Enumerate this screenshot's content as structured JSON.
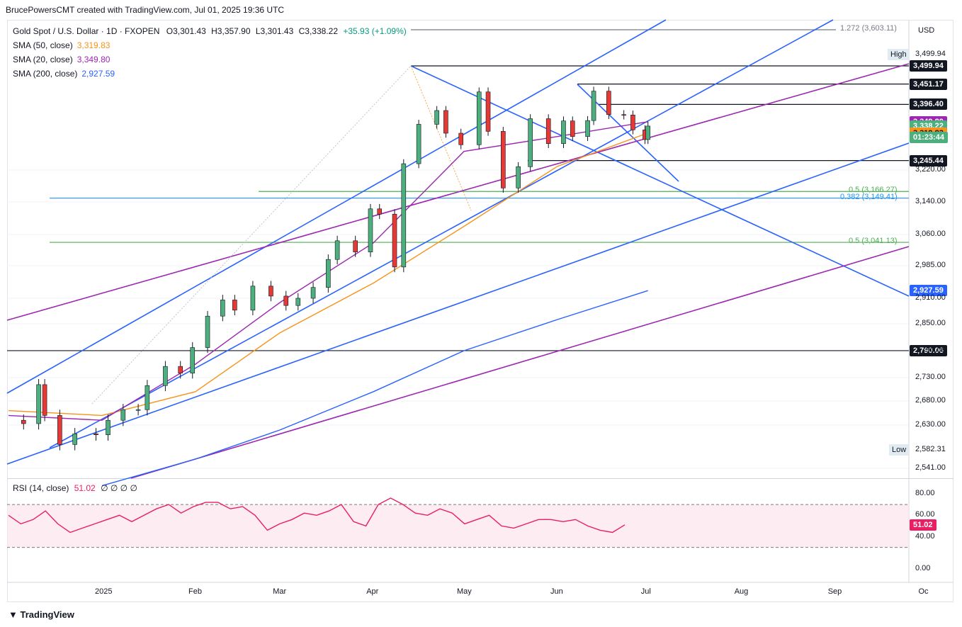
{
  "caption": "BrucePowersCMT created with TradingView.com, Jul 01, 2025 19:36 UTC",
  "symbol": "Gold Spot / U.S. Dollar · 1D · FXOPEN",
  "ohlc": {
    "o": "O3,301.43",
    "h": "H3,357.90",
    "l": "L3,301.43",
    "c": "C3,338.22",
    "chg": "+35.93 (+1.09%)"
  },
  "sma": [
    {
      "label": "SMA (50, close)",
      "value": "3,319.83",
      "color": "#f7931a"
    },
    {
      "label": "SMA (20, close)",
      "value": "3,349.80",
      "color": "#9c27b0"
    },
    {
      "label": "SMA (200, close)",
      "value": "2,927.59",
      "color": "#2962ff"
    }
  ],
  "currency": "USD",
  "high_label": "High",
  "high_value": "3,499.94",
  "low_label": "Low",
  "low_value": "2,582.31",
  "countdown": "01:23:44",
  "fib_labels": [
    {
      "text": "1.272 (3,603.11)",
      "price": 3603.11,
      "color": "#787b86"
    },
    {
      "text": "0.5 (3,166.27)",
      "price": 3166.27,
      "color": "#4caf50"
    },
    {
      "text": "0.382 (3,149.41)",
      "price": 3149.41,
      "color": "#2196f3"
    },
    {
      "text": "0.5 (3,041.13)",
      "price": 3041.13,
      "color": "#4caf50"
    }
  ],
  "price_boxes": [
    {
      "text": "3,499.94",
      "price": 3499.94,
      "bg": "#131722",
      "fg": "#ffffff"
    },
    {
      "text": "3,451.17",
      "price": 3451.17,
      "bg": "#131722",
      "fg": "#ffffff"
    },
    {
      "text": "3,396.40",
      "price": 3396.4,
      "bg": "#131722",
      "fg": "#ffffff"
    },
    {
      "text": "3,349.80",
      "price": 3349.8,
      "bg": "#9c27b0",
      "fg": "#ffffff"
    },
    {
      "text": "3,338.22",
      "price": 3338.22,
      "bg": "#4caf7d",
      "fg": "#ffffff"
    },
    {
      "text": "3,319.83",
      "price": 3319.83,
      "bg": "#f7931a",
      "fg": "#131722"
    },
    {
      "text": "3,245.44",
      "price": 3245.44,
      "bg": "#131722",
      "fg": "#ffffff"
    },
    {
      "text": "2,927.59",
      "price": 2927.59,
      "bg": "#2962ff",
      "fg": "#ffffff"
    },
    {
      "text": "2,790.06",
      "price": 2790.06,
      "bg": "#131722",
      "fg": "#ffffff"
    }
  ],
  "rsi": {
    "label": "RSI (14, close)",
    "value": "51.02",
    "ticks": [
      "80.00",
      "60.00",
      "40.00",
      "0.00"
    ],
    "extra": "∅ ∅ ∅ ∅"
  },
  "brand": "TradingView",
  "chart_data": {
    "type": "line",
    "title": "Gold Spot / U.S. Dollar · 1D · FXOPEN",
    "y_ticks": [
      3220,
      3140,
      3060,
      2985,
      2910,
      2850,
      2790,
      2730,
      2680,
      2630,
      2541
    ],
    "y_tick_labels": [
      "3,220.00",
      "3,140.00",
      "3,060.00",
      "2,985.00",
      "2,910.00",
      "2,850.00",
      "2,790.00",
      "2,730.00",
      "2,680.00",
      "2,630.00",
      "2,541.00"
    ],
    "x_labels": [
      "2025",
      "Feb",
      "Mar",
      "Apr",
      "May",
      "Jun",
      "Jul",
      "Aug",
      "Sep",
      "Oc"
    ],
    "x_dates": [
      "2025-01-01",
      "2025-02-01",
      "2025-03-01",
      "2025-04-01",
      "2025-05-01",
      "2025-06-01",
      "2025-07-01",
      "2025-08-01",
      "2025-09-01",
      "2025-10-01"
    ],
    "ylim": [
      2541,
      3603
    ],
    "close_series": [
      [
        "2024-12-02",
        2640
      ],
      [
        "2024-12-06",
        2633
      ],
      [
        "2024-12-11",
        2715
      ],
      [
        "2024-12-13",
        2650
      ],
      [
        "2024-12-18",
        2590
      ],
      [
        "2024-12-23",
        2612
      ],
      [
        "2024-12-30",
        2610
      ],
      [
        "2025-01-03",
        2640
      ],
      [
        "2025-01-08",
        2662
      ],
      [
        "2025-01-13",
        2662
      ],
      [
        "2025-01-16",
        2713
      ],
      [
        "2025-01-22",
        2755
      ],
      [
        "2025-01-27",
        2740
      ],
      [
        "2025-01-31",
        2797
      ],
      [
        "2025-02-05",
        2868
      ],
      [
        "2025-02-10",
        2906
      ],
      [
        "2025-02-14",
        2882
      ],
      [
        "2025-02-20",
        2938
      ],
      [
        "2025-02-26",
        2915
      ],
      [
        "2025-03-03",
        2893
      ],
      [
        "2025-03-07",
        2910
      ],
      [
        "2025-03-12",
        2935
      ],
      [
        "2025-03-17",
        3000
      ],
      [
        "2025-03-20",
        3045
      ],
      [
        "2025-03-26",
        3018
      ],
      [
        "2025-03-31",
        3123
      ],
      [
        "2025-04-03",
        3110
      ],
      [
        "2025-04-08",
        2982
      ],
      [
        "2025-04-11",
        3237
      ],
      [
        "2025-04-16",
        3343
      ],
      [
        "2025-04-22",
        3380
      ],
      [
        "2025-04-25",
        3319
      ],
      [
        "2025-04-30",
        3288
      ],
      [
        "2025-05-06",
        3430
      ],
      [
        "2025-05-09",
        3324
      ],
      [
        "2025-05-14",
        3175
      ],
      [
        "2025-05-19",
        3229
      ],
      [
        "2025-05-23",
        3358
      ],
      [
        "2025-05-29",
        3291
      ],
      [
        "2025-06-03",
        3352
      ],
      [
        "2025-06-06",
        3310
      ],
      [
        "2025-06-11",
        3353
      ],
      [
        "2025-06-13",
        3432
      ],
      [
        "2025-06-18",
        3369
      ],
      [
        "2025-06-23",
        3368
      ],
      [
        "2025-06-26",
        3328
      ],
      [
        "2025-06-30",
        3302
      ],
      [
        "2025-07-01",
        3338.22
      ]
    ],
    "sma": [
      {
        "name": "SMA (50, close)",
        "color": "#f7931a",
        "values": [
          [
            "2024-12-01",
            2660
          ],
          [
            "2025-01-01",
            2650
          ],
          [
            "2025-02-01",
            2700
          ],
          [
            "2025-03-01",
            2830
          ],
          [
            "2025-04-01",
            2945
          ],
          [
            "2025-05-01",
            3080
          ],
          [
            "2025-06-01",
            3230
          ],
          [
            "2025-07-01",
            3319.83
          ]
        ]
      },
      {
        "name": "SMA (20, close)",
        "color": "#9c27b0",
        "values": [
          [
            "2024-12-01",
            2650
          ],
          [
            "2025-01-01",
            2640
          ],
          [
            "2025-02-01",
            2760
          ],
          [
            "2025-03-01",
            2900
          ],
          [
            "2025-04-01",
            3040
          ],
          [
            "2025-05-01",
            3270
          ],
          [
            "2025-06-01",
            3310
          ],
          [
            "2025-07-01",
            3349.8
          ]
        ]
      },
      {
        "name": "SMA (200, close)",
        "color": "#2962ff",
        "values": [
          [
            "2025-01-01",
            2500
          ],
          [
            "2025-02-01",
            2560
          ],
          [
            "2025-03-01",
            2620
          ],
          [
            "2025-04-01",
            2700
          ],
          [
            "2025-05-01",
            2790
          ],
          [
            "2025-06-01",
            2860
          ],
          [
            "2025-07-01",
            2927.59
          ]
        ]
      }
    ],
    "rsi_values": [
      60,
      52,
      56,
      64,
      52,
      44,
      48,
      52,
      56,
      60,
      54,
      60,
      66,
      70,
      62,
      68,
      72,
      72,
      66,
      68,
      60,
      46,
      52,
      56,
      62,
      60,
      64,
      70,
      54,
      50,
      70,
      76,
      70,
      62,
      60,
      66,
      62,
      52,
      56,
      60,
      50,
      48,
      52,
      56,
      56,
      54,
      56,
      50,
      46,
      44,
      51.02
    ],
    "grid": true
  }
}
